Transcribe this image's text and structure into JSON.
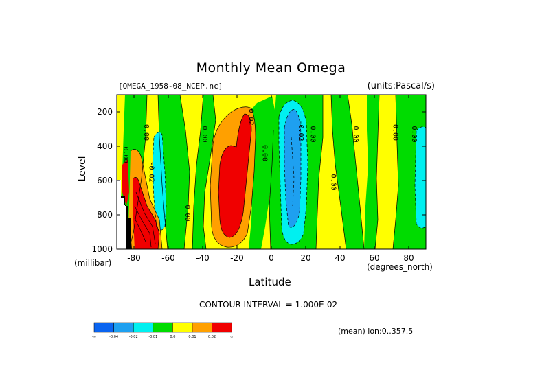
{
  "chart_data": {
    "type": "heatmap",
    "title": "Monthly Mean Omega",
    "dataset_label": "[OMEGA_1958-08_NCEP.nc]",
    "units_label": "(units:Pascal/s)",
    "xlabel": "Latitude",
    "x_units": "(degrees_north)",
    "ylabel": "Level",
    "y_units": "(millibar)",
    "xlim": [
      -90,
      90
    ],
    "ylim": [
      1000,
      100
    ],
    "x_ticks": [
      "-80",
      "-60",
      "-40",
      "-20",
      "0",
      "20",
      "40",
      "60",
      "80"
    ],
    "x_tick_values": [
      -80,
      -60,
      -40,
      -20,
      0,
      20,
      40,
      60,
      80
    ],
    "y_ticks": [
      "200",
      "400",
      "600",
      "800",
      "1000"
    ],
    "y_tick_values": [
      200,
      400,
      600,
      800,
      1000
    ],
    "contour_interval_text": "CONTOUR INTERVAL = 1.000E-02",
    "region_text": "(mean) lon:0..357.5",
    "colorbar": {
      "labels": [
        "-∞",
        "-0.04",
        "-0.02",
        "-0.01",
        "0.0",
        "0.01",
        "0.02",
        "∞"
      ],
      "colors": [
        "#0a64f0",
        "#1ea0f0",
        "#00f0f0",
        "#00dc00",
        "#ffff00",
        "#ffa000",
        "#f00000"
      ]
    },
    "contour_labels": [
      {
        "text": "-0.02",
        "lat": -71,
        "level": 550
      },
      {
        "text": "0.00",
        "lat": -86,
        "level": 450
      },
      {
        "text": "0.00",
        "lat": -74,
        "level": 320
      },
      {
        "text": "0.00",
        "lat": -50,
        "level": 790
      },
      {
        "text": "0.00",
        "lat": -40,
        "level": 330
      },
      {
        "text": "0.02",
        "lat": -13,
        "level": 230
      },
      {
        "text": "0.00",
        "lat": -5,
        "level": 440
      },
      {
        "text": "-0.02",
        "lat": 16,
        "level": 310
      },
      {
        "text": "0.00",
        "lat": 23,
        "level": 330
      },
      {
        "text": "0.00",
        "lat": 35,
        "level": 610
      },
      {
        "text": "0.00",
        "lat": 48,
        "level": 330
      },
      {
        "text": "0.00",
        "lat": 71,
        "level": 320
      },
      {
        "text": "0.00",
        "lat": 82,
        "level": 330
      }
    ],
    "regions": [
      {
        "category": "-0.04..-0.02",
        "approx_lat": [
          5,
          20
        ],
        "approx_level": [
          230,
          850
        ]
      },
      {
        "category": "-0.02..-0.01",
        "approx_lat": [
          3,
          23
        ],
        "approx_level": [
          110,
          920
        ]
      },
      {
        "category": "0.01..0.02",
        "approx_lat": [
          -35,
          -10
        ],
        "approx_level": [
          120,
          980
        ]
      },
      {
        "category": ">0.02",
        "approx_lat": [
          -33,
          -13
        ],
        "approx_level": [
          150,
          900
        ]
      },
      {
        "category": ">0.02",
        "approx_lat": [
          -78,
          -66
        ],
        "approx_level": [
          560,
          1000
        ]
      },
      {
        "category": "-0.02..-0.01",
        "approx_lat": [
          -68,
          -62
        ],
        "approx_level": [
          300,
          940
        ]
      },
      {
        "category": "-0.02..-0.01",
        "approx_lat": [
          86,
          90
        ],
        "approx_level": [
          280,
          920
        ]
      }
    ]
  }
}
